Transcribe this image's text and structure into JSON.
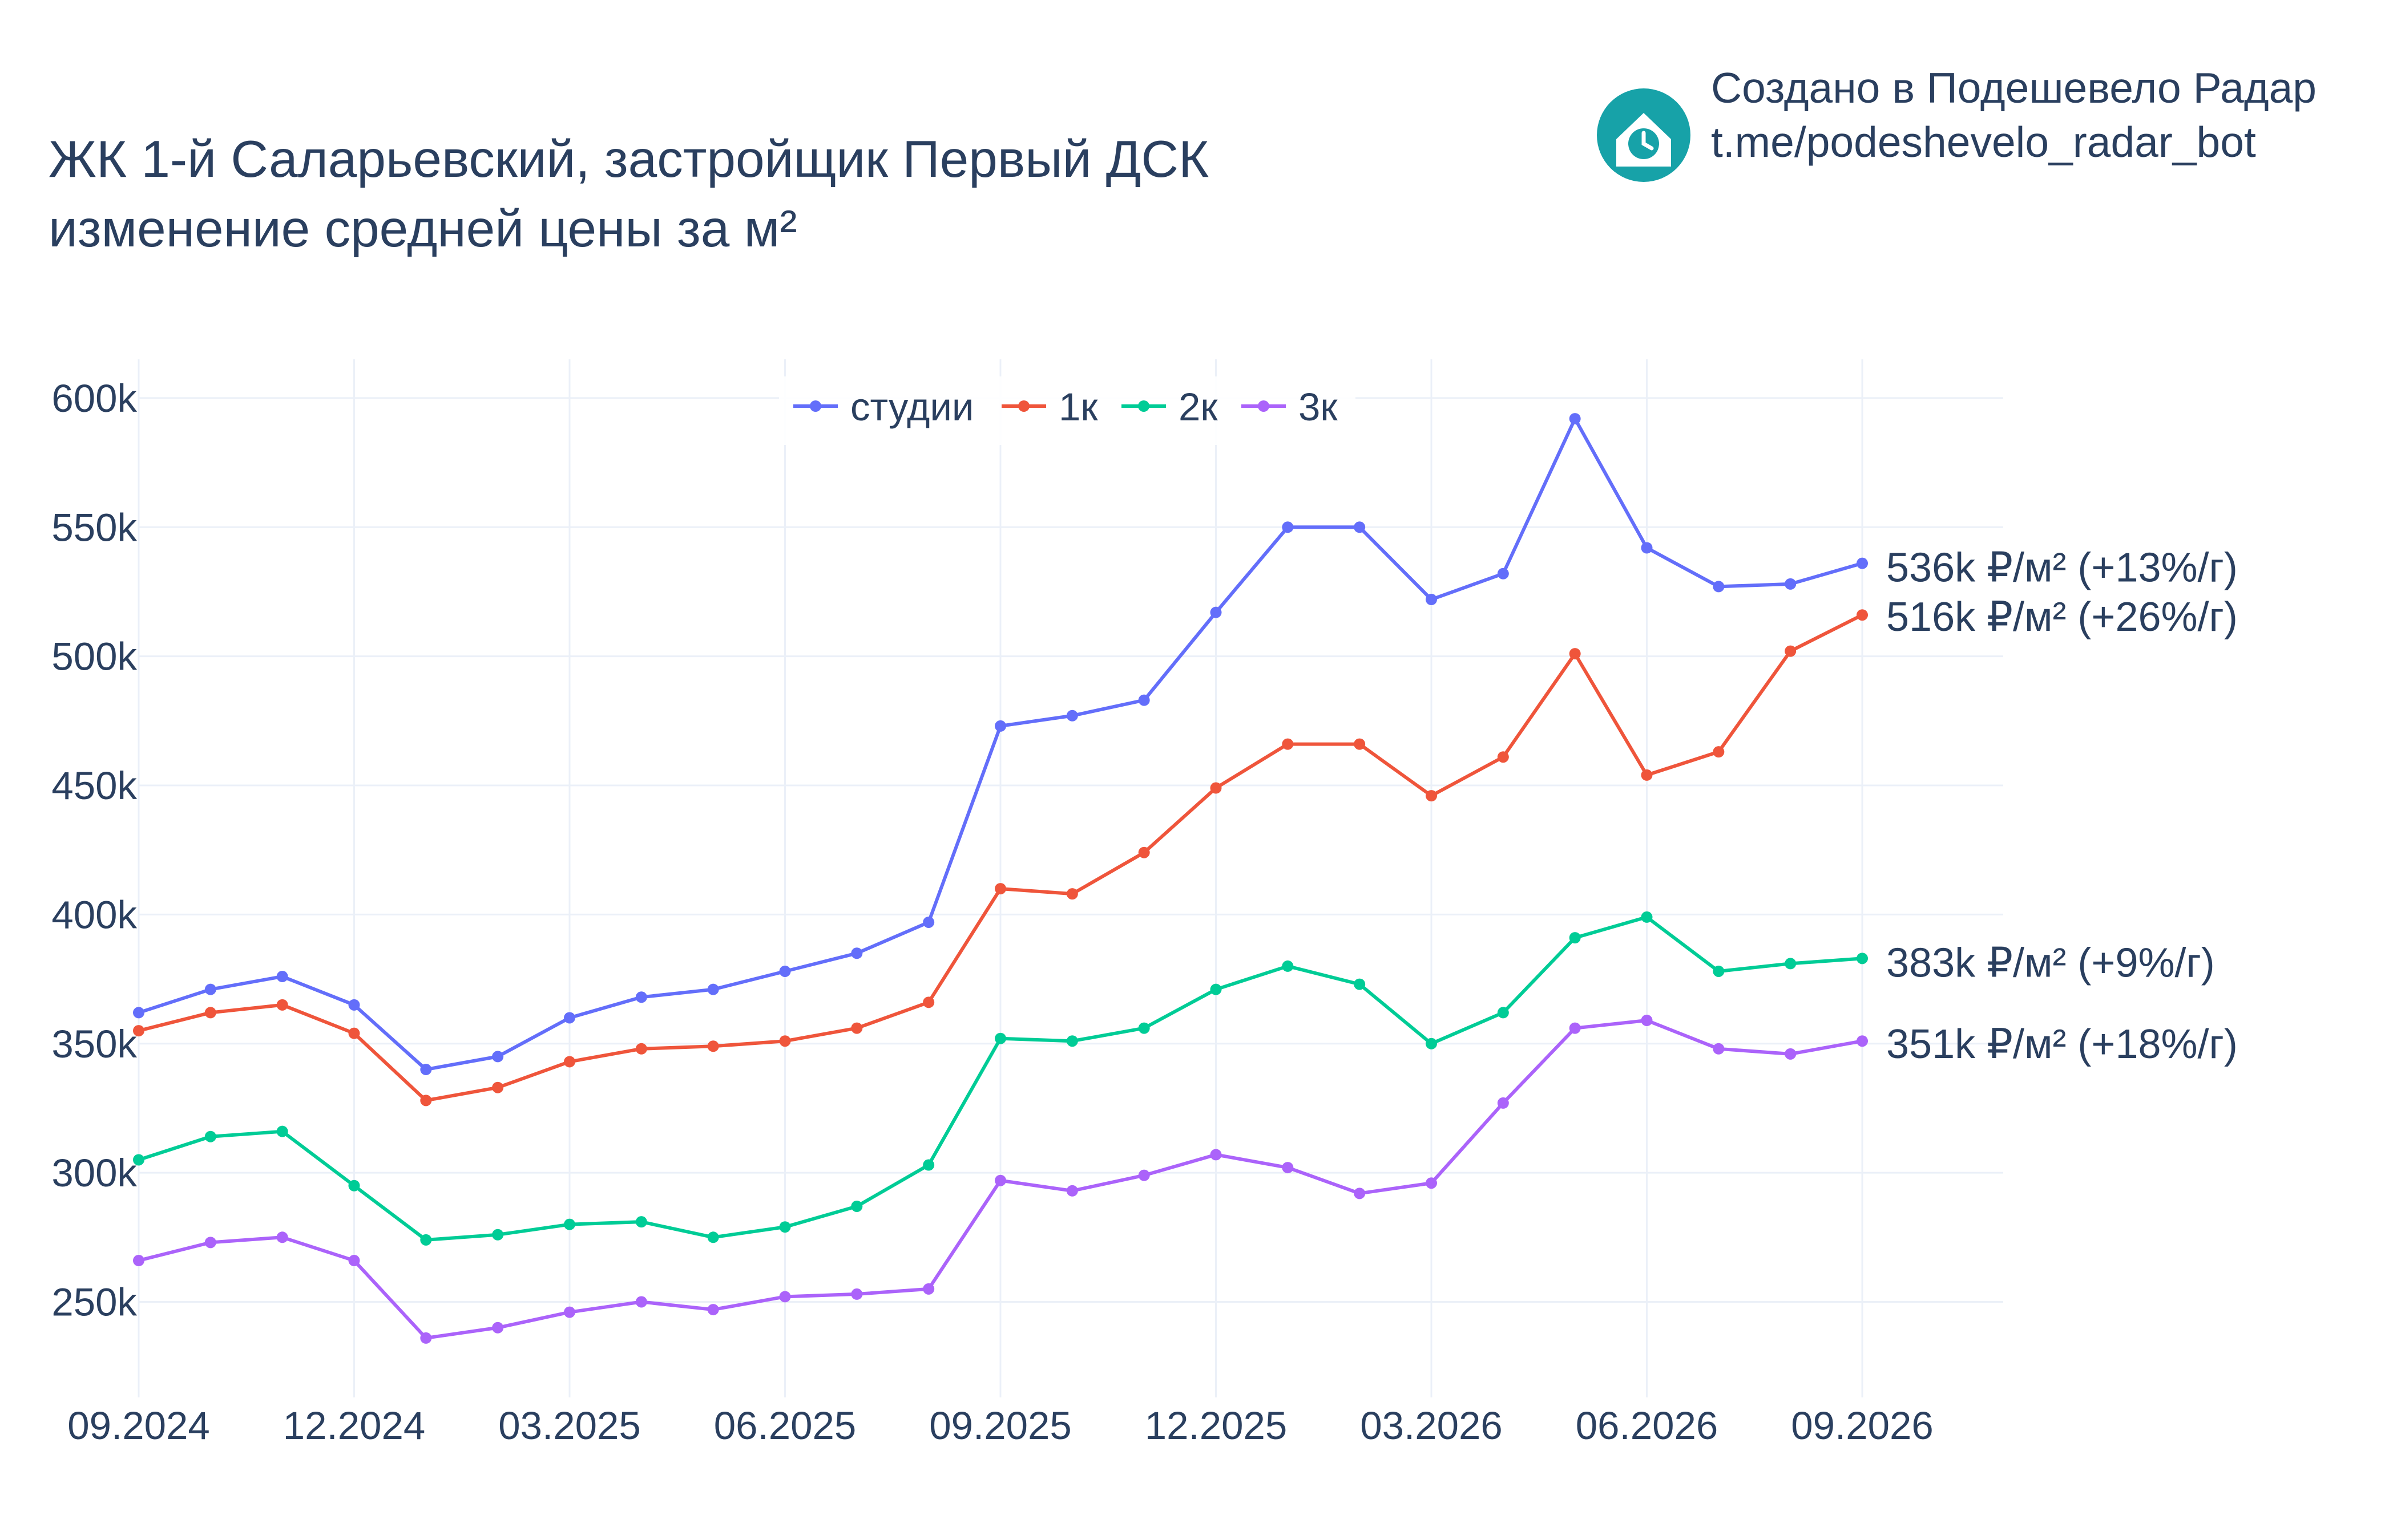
{
  "header": {
    "title_line1": "ЖК 1-й Саларьевский, застройщик Первый ДСК",
    "title_line2": "изменение средней цены за м²"
  },
  "credit": {
    "line1": "Создано в Подешевело Радар",
    "line2": "t.me/podeshevelo_radar_bot",
    "logo_icon": "house-clock-icon",
    "logo_color": "#17a2a8"
  },
  "chart_data": {
    "type": "line",
    "title": "ЖК 1-й Саларьевский, застройщик Первый ДСК изменение средней цены за м²",
    "x": [
      "09.2024",
      "10.2024",
      "11.2024",
      "12.2024",
      "01.2025",
      "02.2025",
      "03.2025",
      "04.2025",
      "05.2025",
      "06.2025",
      "07.2025",
      "08.2025",
      "09.2025",
      "10.2025",
      "11.2025",
      "12.2025",
      "01.2026",
      "02.2026",
      "03.2026",
      "04.2026",
      "05.2026",
      "06.2026",
      "07.2026",
      "08.2026",
      "09.2026"
    ],
    "x_tick_labels": [
      "09.2024",
      "12.2024",
      "03.2025",
      "06.2025",
      "09.2025",
      "12.2025",
      "03.2026",
      "06.2026",
      "09.2026"
    ],
    "y_tick_values": [
      250000,
      300000,
      350000,
      400000,
      450000,
      500000,
      550000,
      600000
    ],
    "y_tick_labels": [
      "250k",
      "300k",
      "350k",
      "400k",
      "450k",
      "500k",
      "550k",
      "600k"
    ],
    "ylim": [
      213000,
      615000
    ],
    "grid": true,
    "legend_position": "top-center",
    "series": [
      {
        "name": "студии",
        "color": "#636efa",
        "end_label": "536k ₽/м² (+13%/г)",
        "values": [
          362000,
          371000,
          376000,
          365000,
          340000,
          345000,
          360000,
          368000,
          371000,
          378000,
          385000,
          397000,
          473000,
          477000,
          483000,
          517000,
          550000,
          550000,
          522000,
          532000,
          592000,
          542000,
          527000,
          528000,
          536000
        ]
      },
      {
        "name": "1к",
        "color": "#ef553b",
        "end_label": "516k ₽/м² (+26%/г)",
        "values": [
          355000,
          362000,
          365000,
          354000,
          328000,
          333000,
          343000,
          348000,
          349000,
          351000,
          356000,
          366000,
          410000,
          408000,
          424000,
          449000,
          466000,
          466000,
          446000,
          461000,
          501000,
          454000,
          463000,
          502000,
          516000
        ]
      },
      {
        "name": "2к",
        "color": "#00cc96",
        "end_label": "383k ₽/м² (+9%/г)",
        "values": [
          305000,
          314000,
          316000,
          295000,
          274000,
          276000,
          280000,
          281000,
          275000,
          279000,
          287000,
          303000,
          352000,
          351000,
          356000,
          371000,
          380000,
          373000,
          350000,
          362000,
          391000,
          399000,
          378000,
          381000,
          383000
        ]
      },
      {
        "name": "3к",
        "color": "#ab63fa",
        "end_label": "351k ₽/м² (+18%/г)",
        "values": [
          266000,
          273000,
          275000,
          266000,
          236000,
          240000,
          246000,
          250000,
          247000,
          252000,
          253000,
          255000,
          297000,
          293000,
          299000,
          307000,
          302000,
          292000,
          296000,
          327000,
          356000,
          359000,
          348000,
          346000,
          351000
        ]
      }
    ]
  }
}
